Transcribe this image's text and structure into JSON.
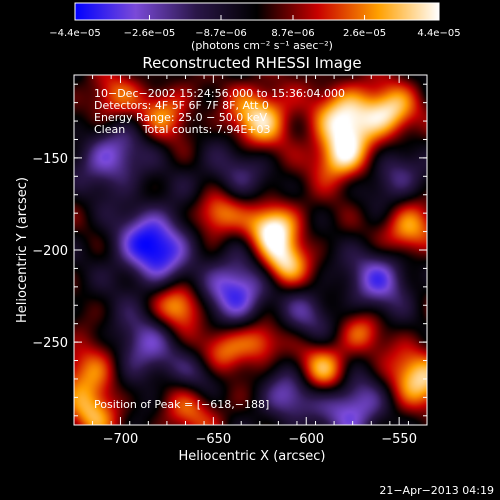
{
  "chart_data": {
    "type": "heatmap",
    "title": "Reconstructed RHESSI Image",
    "xlabel": "Heliocentric X (arcsec)",
    "ylabel": "Heliocentric Y (arcsec)",
    "xlim": [
      -725,
      -535
    ],
    "ylim": [
      -295,
      -105
    ],
    "xticks": [
      -700,
      -650,
      -600,
      -550
    ],
    "yticks": [
      -150,
      -200,
      -250
    ],
    "xtick_labels": [
      "−700",
      "−650",
      "−600",
      "−550"
    ],
    "ytick_labels": [
      "−150",
      "−200",
      "−250"
    ],
    "colorbar": {
      "min": -4.4e-05,
      "max": 4.4e-05,
      "tick_labels": [
        "−4.4e−05",
        "−2.6e−05",
        "−8.7e−06",
        "8.7e−06",
        "2.6e−05",
        "4.4e−05"
      ],
      "tick_values": [
        -4.4e-05,
        -2.6e-05,
        -8.7e-06,
        8.7e-06,
        2.6e-05,
        4.4e-05
      ],
      "unit_label": "(photons cm⁻² s⁻¹ asec⁻²)",
      "colors": [
        "#0000ff",
        "#7a4ad8",
        "#2a1648",
        "#000000",
        "#c80000",
        "#ffa000",
        "#ffffff"
      ]
    },
    "info_lines": [
      "10−Dec−2002 15:24:56.000 to 15:36:04.000",
      "Detectors: 4F 5F 6F 7F 8F, Att 0",
      "Energy Range: 25.0 − 50.0 keV",
      "Clean     Total counts: 7.94E+03"
    ],
    "peak_label": "Position of Peak = [−618,−188]",
    "peak": [
      -618,
      -188
    ],
    "timestamp": "21−Apr−2013 04:19",
    "sources": [
      {
        "x": -682,
        "y": -198,
        "v": -1.0,
        "s": 14
      },
      {
        "x": -638,
        "y": -222,
        "v": -0.9,
        "s": 12
      },
      {
        "x": -705,
        "y": -150,
        "v": -0.7,
        "s": 12
      },
      {
        "x": -560,
        "y": -215,
        "v": -0.7,
        "s": 12
      },
      {
        "x": -575,
        "y": -285,
        "v": -0.8,
        "s": 12
      },
      {
        "x": -610,
        "y": -280,
        "v": -0.6,
        "s": 10
      },
      {
        "x": -655,
        "y": -268,
        "v": -0.5,
        "s": 10
      },
      {
        "x": -690,
        "y": -255,
        "v": -0.6,
        "s": 14
      },
      {
        "x": -640,
        "y": -160,
        "v": -0.4,
        "s": 14
      },
      {
        "x": -600,
        "y": -235,
        "v": -0.4,
        "s": 10
      },
      {
        "x": -552,
        "y": -160,
        "v": -0.5,
        "s": 10
      },
      {
        "x": -618,
        "y": -188,
        "v": 1.0,
        "s": 10
      },
      {
        "x": -578,
        "y": -128,
        "v": 0.9,
        "s": 12
      },
      {
        "x": -625,
        "y": -128,
        "v": 0.85,
        "s": 12
      },
      {
        "x": -648,
        "y": -180,
        "v": 0.8,
        "s": 9
      },
      {
        "x": -582,
        "y": -150,
        "v": 0.85,
        "s": 10
      },
      {
        "x": -555,
        "y": -125,
        "v": 0.8,
        "s": 10
      },
      {
        "x": -540,
        "y": -270,
        "v": 0.8,
        "s": 12
      },
      {
        "x": -545,
        "y": -190,
        "v": 0.75,
        "s": 10
      },
      {
        "x": -590,
        "y": -265,
        "v": 0.7,
        "s": 10
      },
      {
        "x": -668,
        "y": -230,
        "v": 0.75,
        "s": 9
      },
      {
        "x": -612,
        "y": -208,
        "v": 0.8,
        "s": 9
      },
      {
        "x": -715,
        "y": -265,
        "v": 0.7,
        "s": 12
      },
      {
        "x": -715,
        "y": -290,
        "v": 0.6,
        "s": 10
      },
      {
        "x": -645,
        "y": -255,
        "v": 0.6,
        "s": 10
      },
      {
        "x": -675,
        "y": -125,
        "v": 0.55,
        "s": 10
      },
      {
        "x": -705,
        "y": -118,
        "v": 0.5,
        "s": 10
      },
      {
        "x": -660,
        "y": -285,
        "v": 0.5,
        "s": 12
      },
      {
        "x": -625,
        "y": -250,
        "v": 0.55,
        "s": 8
      },
      {
        "x": -570,
        "y": -245,
        "v": 0.45,
        "s": 8
      }
    ]
  }
}
